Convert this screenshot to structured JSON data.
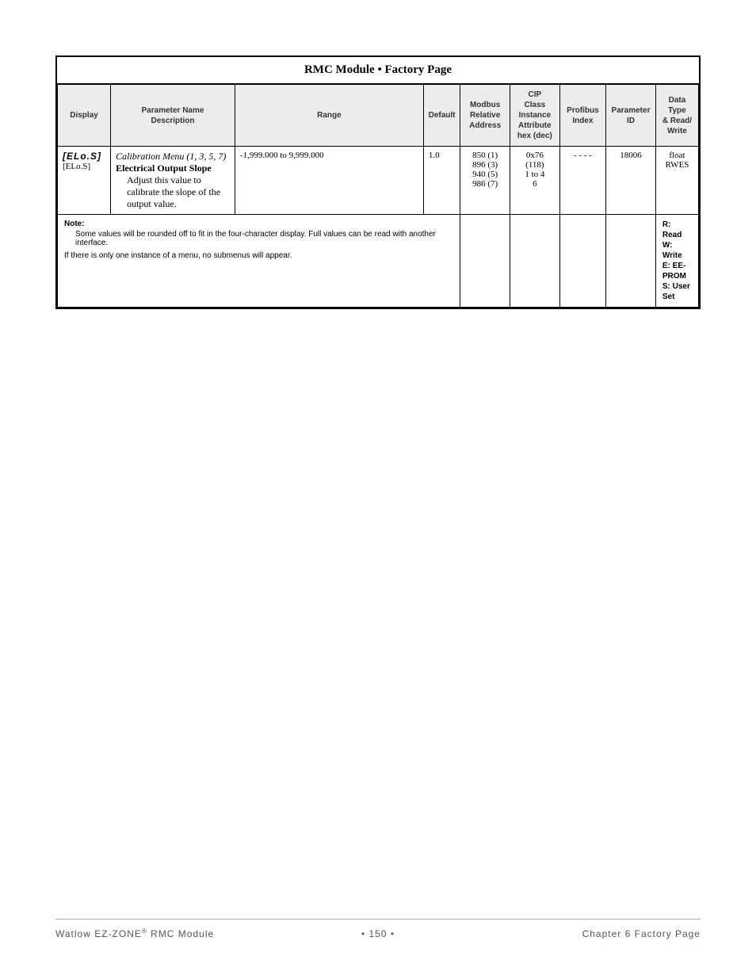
{
  "table": {
    "title": "RMC Module  •  Factory Page",
    "columns": [
      "Display",
      "Parameter Name\nDescription",
      "Range",
      "Default",
      "Modbus\nRelative\nAddress",
      "CIP\nClass\nInstance\nAttribute\nhex (dec)",
      "Profibus\nIndex",
      "Parameter\nID",
      "Data\nType\n& Read/\nWrite"
    ],
    "row": {
      "display_seg": "ELo.S",
      "display_label": "[ELo.S]",
      "param_menu": "Calibration Menu (1, 3, 5, 7)",
      "param_name": "Electrical Output Slope",
      "param_desc": "Adjust this value to calibrate the slope of the output value.",
      "range": "-1,999.000 to 9,999.000",
      "default": "1.0",
      "modbus": "850 (1)\n896 (3)\n940 (5)\n986 (7)",
      "cip": "0x76\n(118)\n1 to 4\n6",
      "profibus": "- - - -",
      "param_id": "18006",
      "data_type": "float\nRWES"
    },
    "note": {
      "label": "Note:",
      "text1": "Some values will be rounded off to fit in the four-character display. Full values can be read with another interface.",
      "text2": "If there is only one instance of a menu, no submenus will appear."
    },
    "legend": "R: Read\nW: Write\nE: EE-PROM\nS: User Set"
  },
  "footer": {
    "left_prefix": "Watlow EZ-ZONE",
    "left_suffix": " RMC Module",
    "center": "•  150  •",
    "right": "Chapter 6 Factory Page"
  }
}
